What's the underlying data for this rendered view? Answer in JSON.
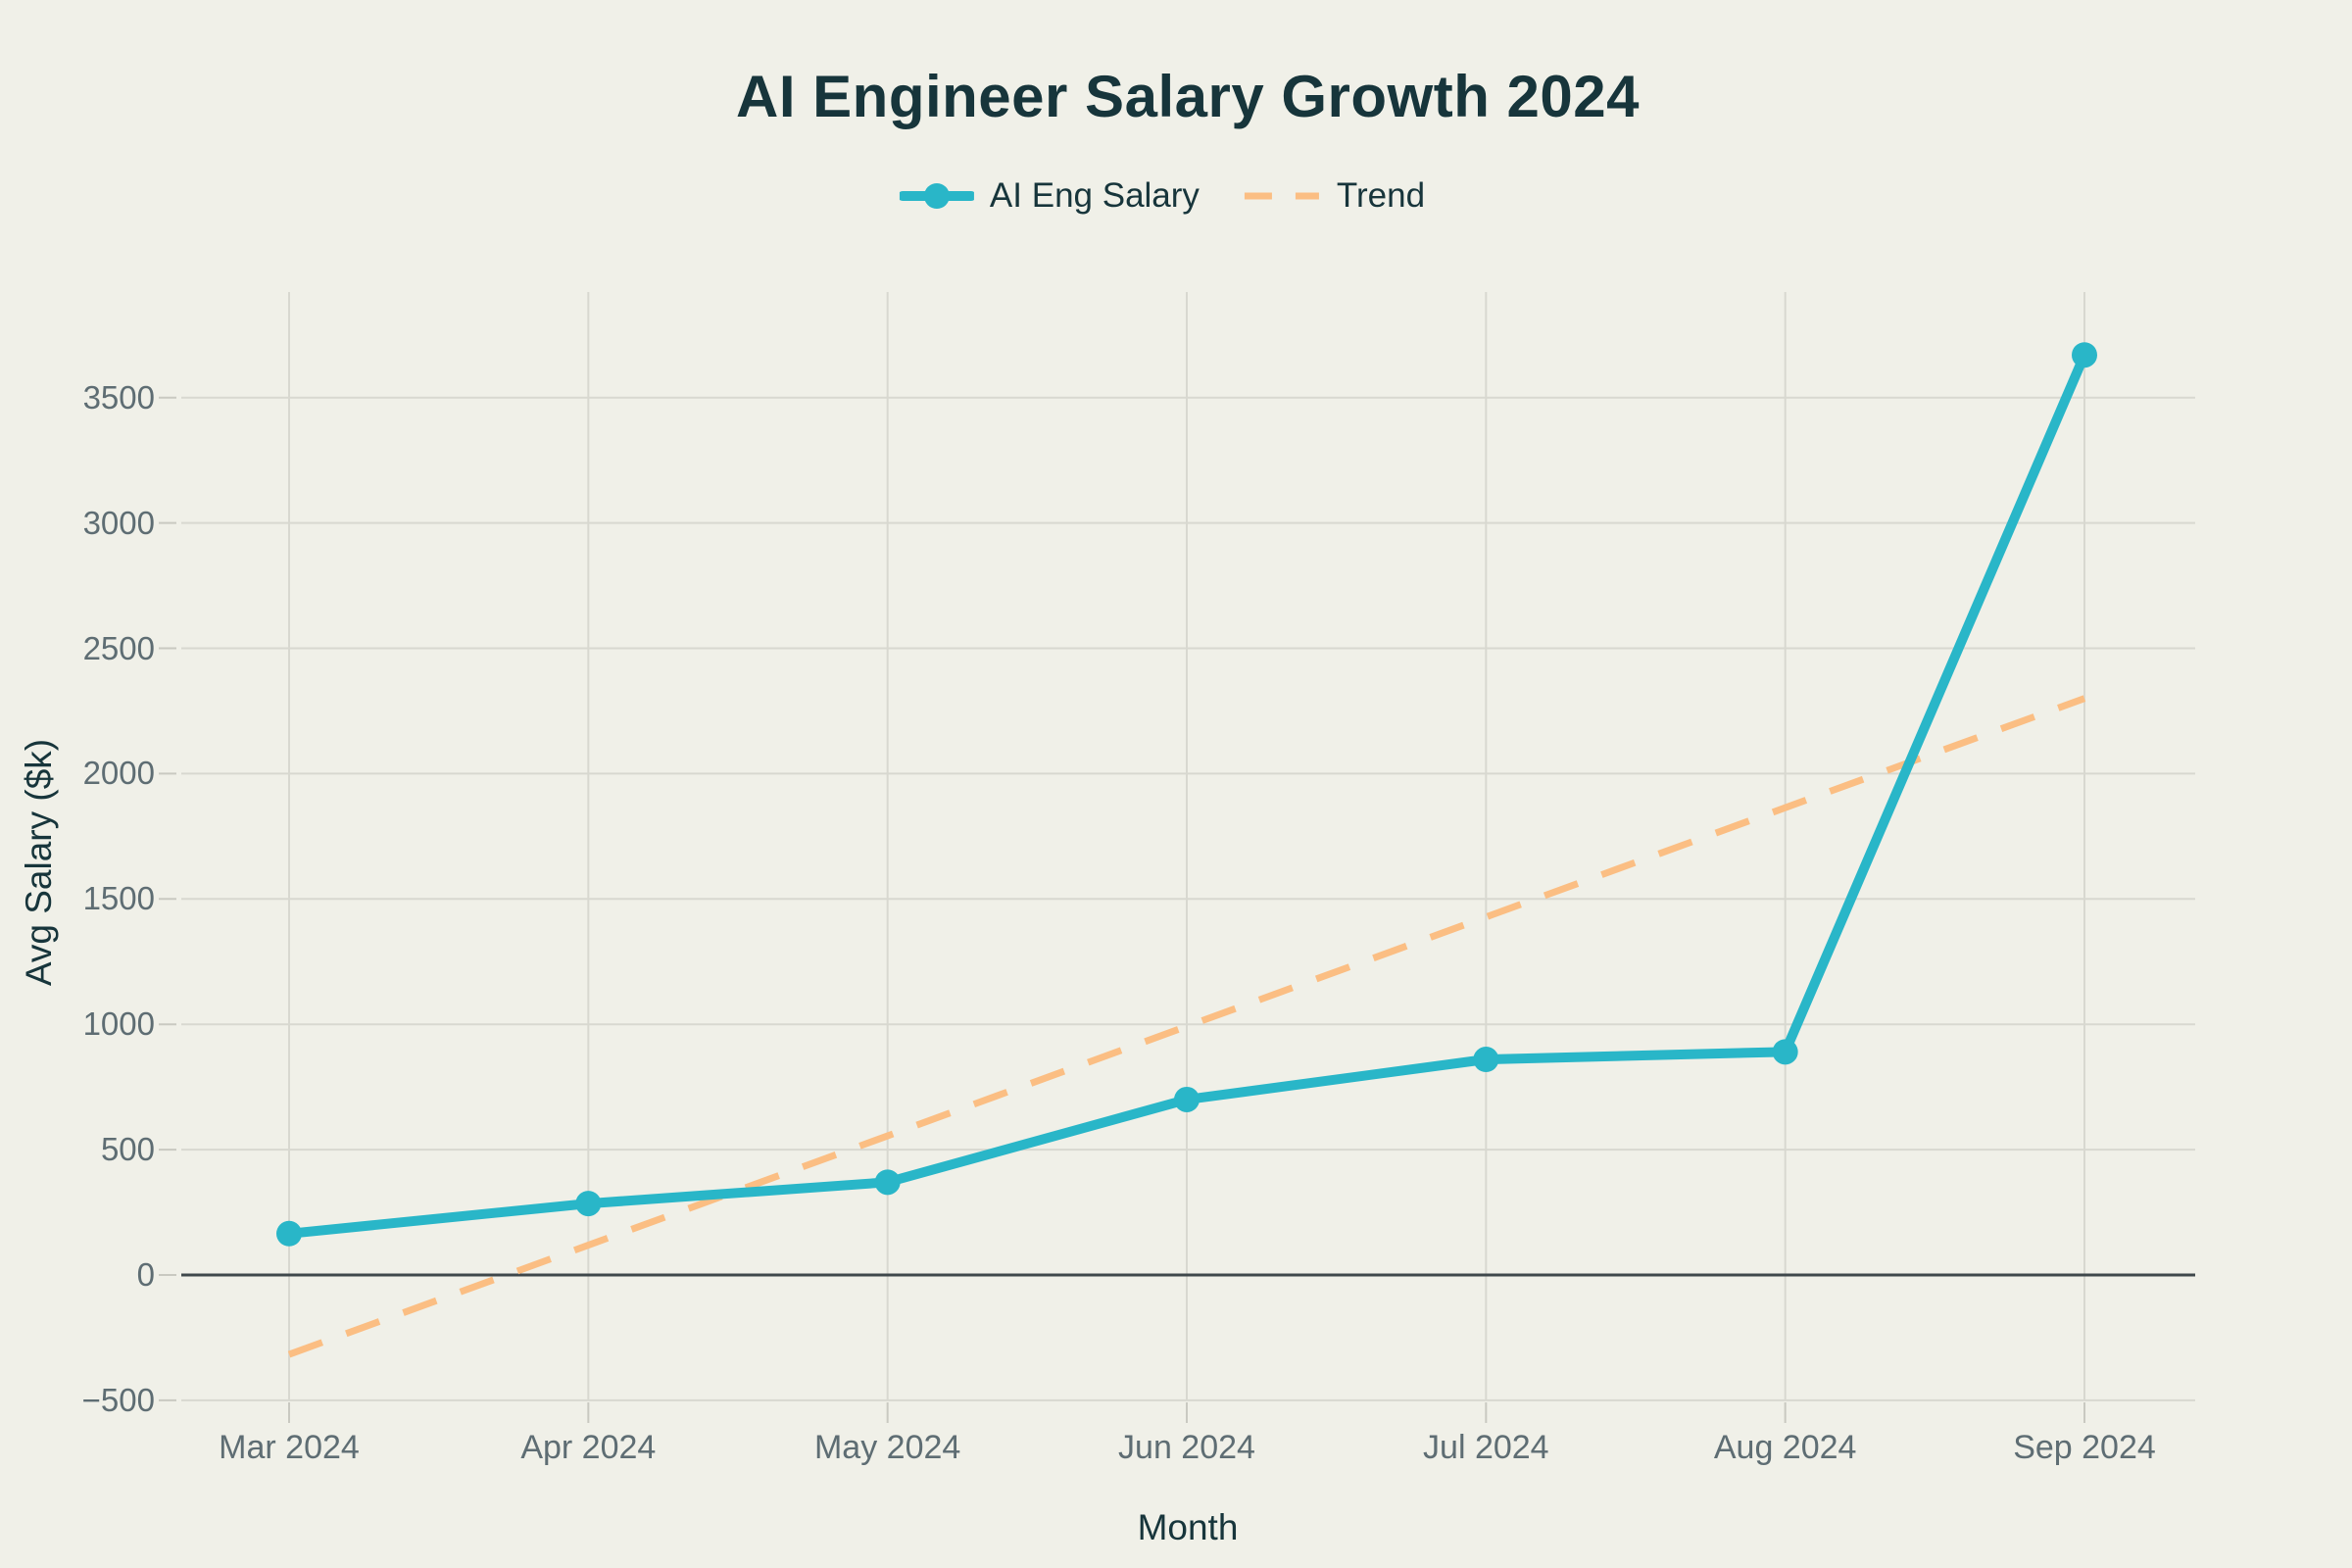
{
  "title": "AI Engineer Salary Growth 2024",
  "chart_data": {
    "type": "line",
    "title": "AI Engineer Salary Growth 2024",
    "xlabel": "Month",
    "ylabel": "Avg Salary ($k)",
    "categories": [
      "Mar 2024",
      "Apr 2024",
      "May 2024",
      "Jun 2024",
      "Jul 2024",
      "Aug 2024",
      "Sep 2024"
    ],
    "series": [
      {
        "name": "AI Eng Salary",
        "style": "solid",
        "marker": "circle",
        "color": "#29b6c8",
        "values": [
          165,
          285,
          370,
          700,
          860,
          890,
          3670
        ]
      },
      {
        "name": "Trend",
        "style": "dashed",
        "marker": "none",
        "color": "#fbbe83",
        "values": [
          -317,
          119,
          555,
          992,
          1428,
          1864,
          2300
        ]
      }
    ],
    "yticks": [
      {
        "label": "3500",
        "value": 3500
      },
      {
        "label": "3000",
        "value": 3000
      },
      {
        "label": "2500",
        "value": 2500
      },
      {
        "label": "2000",
        "value": 2000
      },
      {
        "label": "1500",
        "value": 1500
      },
      {
        "label": "1000",
        "value": 1000
      },
      {
        "label": "500",
        "value": 500
      },
      {
        "label": "0",
        "value": 0
      },
      {
        "label": "−500",
        "value": -500
      }
    ],
    "ylim": [
      -500,
      3920
    ],
    "grid": true,
    "zero_line": true,
    "legend_position": "top-center"
  },
  "colors": {
    "background": "#f0f0e8",
    "grid": "#d8d8d0",
    "tick": "#c9c9c1",
    "zero_line": "#3f484b",
    "text_dark": "#17353b",
    "text_muted": "#5e6d73",
    "salary_line": "#29b6c8",
    "trend_line": "#fbbe83"
  }
}
